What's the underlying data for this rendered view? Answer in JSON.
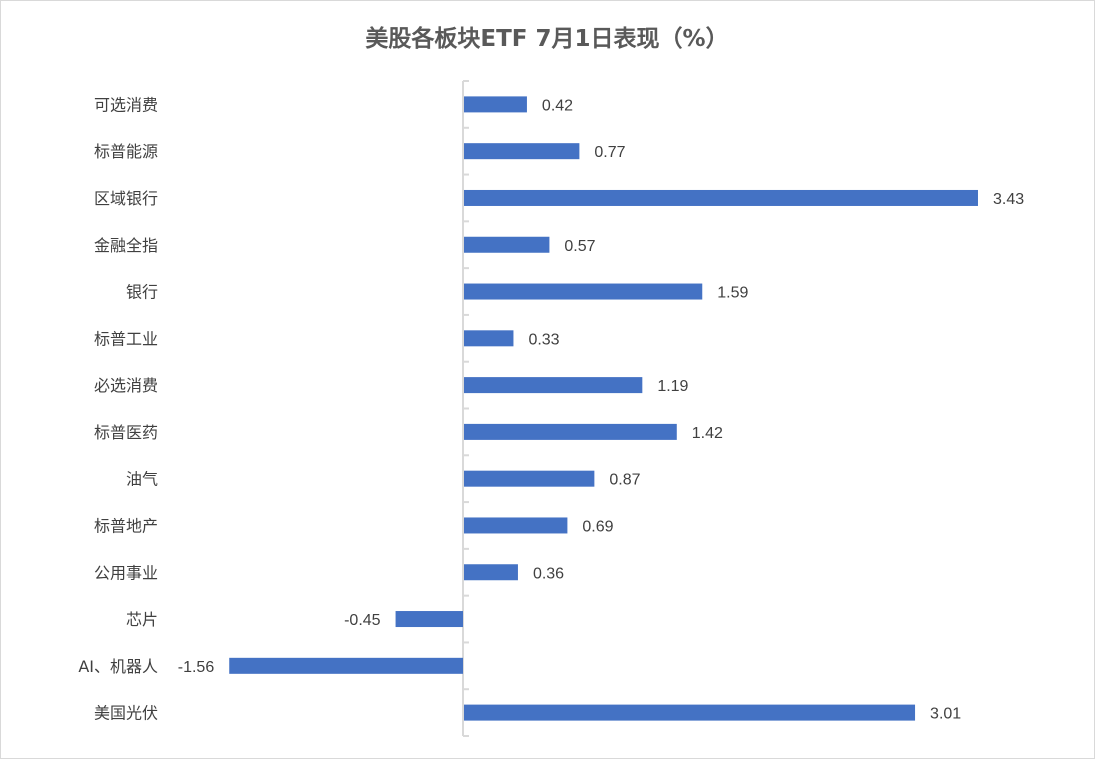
{
  "chart_data": {
    "type": "bar",
    "orientation": "horizontal",
    "title": "美股各板块ETF  7月1日表现（%）",
    "xlabel": "",
    "ylabel": "",
    "categories": [
      "可选消费",
      "标普能源",
      "区域银行",
      "金融全指",
      "银行",
      "标普工业",
      "必选消费",
      "标普医药",
      "油气",
      "标普地产",
      "公用事业",
      "芯片",
      "AI、机器人",
      "美国光伏"
    ],
    "values": [
      0.42,
      0.77,
      3.43,
      0.57,
      1.59,
      0.33,
      1.19,
      1.42,
      0.87,
      0.69,
      0.36,
      -0.45,
      -1.56,
      3.01
    ],
    "data_labels": [
      "0.42",
      "0.77",
      "3.43",
      "0.57",
      "1.59",
      "0.33",
      "1.19",
      "1.42",
      "0.87",
      "0.69",
      "0.36",
      "-0.45",
      "-1.56",
      "3.01"
    ],
    "grid": false,
    "legend": "none",
    "bar_color": "#4472C4",
    "axis_color": "#D9D9D9",
    "text_color": "#404040"
  }
}
